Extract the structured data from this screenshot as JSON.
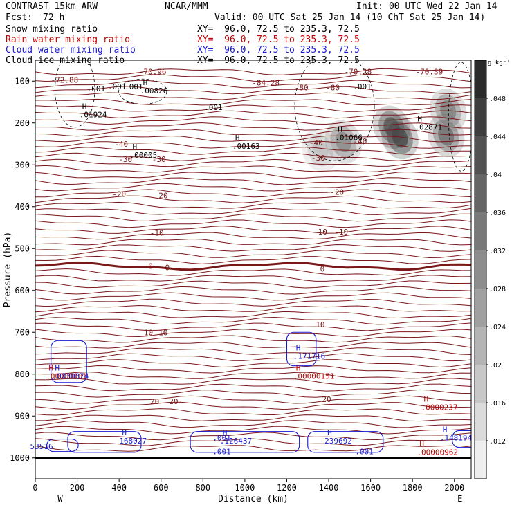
{
  "header": {
    "title": "CONTRAST 15km ARW",
    "org": "NCAR/MMM",
    "init": "Init: 00 UTC Wed 22 Jan 14",
    "fcst_label": "Fcst:",
    "fcst_value": "72 h",
    "valid": "Valid: 00 UTC Sat 25 Jan 14 (10 ChT Sat 25 Jan 14)",
    "fields": [
      {
        "name": "Snow mixing ratio",
        "xy": "XY=  96.0, 72.5 to 235.3, 72.5",
        "color": "#000000"
      },
      {
        "name": "Rain water mixing ratio",
        "xy": "XY=  96.0, 72.5 to 235.3, 72.5",
        "color": "#c00000"
      },
      {
        "name": "Cloud water mixing ratio",
        "xy": "XY=  96.0, 72.5 to 235.3, 72.5",
        "color": "#1a1ad0"
      },
      {
        "name": "Cloud ice mixing ratio",
        "xy": "XY=  96.0, 72.5 to 235.3, 72.5",
        "color": "#000000"
      }
    ]
  },
  "chart_data": {
    "type": "heatmap",
    "xlabel": "Distance (km)",
    "ylabel": "Pressure (hPa)",
    "xlim": [
      0,
      2080
    ],
    "ylim": [
      1050,
      50
    ],
    "x_ticks": [
      0,
      200,
      400,
      600,
      800,
      1000,
      1200,
      1400,
      1600,
      1800,
      2000
    ],
    "y_ticks": [
      100,
      200,
      300,
      400,
      500,
      600,
      700,
      800,
      900,
      1000
    ],
    "x_end_labels": {
      "left": "W",
      "right": "E"
    },
    "colorbar": {
      "unit": "g kg⁻¹",
      "ticks": [
        ".012",
        ".016",
        ".02",
        ".024",
        ".028",
        ".032",
        ".036",
        ".04",
        ".044",
        ".048"
      ],
      "tick_values": [
        0.012,
        0.016,
        0.02,
        0.024,
        0.028,
        0.032,
        0.036,
        0.04,
        0.044,
        0.048
      ],
      "range": [
        0.008,
        0.052
      ]
    },
    "snow_blobs": [
      {
        "x": 1360,
        "p": 265,
        "value": 0.018
      },
      {
        "x": 1470,
        "p": 245,
        "value": 0.03
      },
      {
        "x": 1700,
        "p": 210,
        "value": 0.04
      },
      {
        "x": 1740,
        "p": 235,
        "value": 0.044
      },
      {
        "x": 1970,
        "p": 170,
        "value": 0.032
      },
      {
        "x": 1960,
        "p": 230,
        "value": 0.036
      }
    ],
    "temperature_labels": [
      {
        "text": "-72.88",
        "x": 140,
        "p": 97
      },
      {
        "text": "-70.96",
        "x": 560,
        "p": 77
      },
      {
        "text": "-84.28",
        "x": 1100,
        "p": 104
      },
      {
        "text": "-70.28",
        "x": 1540,
        "p": 77
      },
      {
        "text": "-70.39",
        "x": 1880,
        "p": 77
      },
      {
        "text": "-80",
        "x": 1270,
        "p": 115
      },
      {
        "text": "-80",
        "x": 1420,
        "p": 115
      },
      {
        "text": "-40",
        "x": 410,
        "p": 250
      },
      {
        "text": "-40",
        "x": 1340,
        "p": 247
      },
      {
        "text": "-40",
        "x": 1550,
        "p": 243
      },
      {
        "text": "-30",
        "x": 430,
        "p": 286
      },
      {
        "text": "-30",
        "x": 590,
        "p": 286
      },
      {
        "text": "-30",
        "x": 1350,
        "p": 283
      },
      {
        "text": "-20",
        "x": 400,
        "p": 370
      },
      {
        "text": "-20",
        "x": 600,
        "p": 373
      },
      {
        "text": "-20",
        "x": 1440,
        "p": 365
      },
      {
        "text": "-10",
        "x": 580,
        "p": 462
      },
      {
        "text": "-10",
        "x": 1360,
        "p": 460
      },
      {
        "text": "-10",
        "x": 1460,
        "p": 460
      },
      {
        "text": "0",
        "x": 550,
        "p": 542
      },
      {
        "text": "0",
        "x": 630,
        "p": 545
      },
      {
        "text": "0",
        "x": 1370,
        "p": 548
      },
      {
        "text": "10",
        "x": 540,
        "p": 700
      },
      {
        "text": "10",
        "x": 610,
        "p": 700
      },
      {
        "text": "10",
        "x": 1360,
        "p": 681
      },
      {
        "text": "20",
        "x": 570,
        "p": 865
      },
      {
        "text": "20",
        "x": 660,
        "p": 865
      },
      {
        "text": "20",
        "x": 1390,
        "p": 860
      }
    ],
    "ice_labels": [
      {
        "text": ".001",
        "x": 290,
        "p": 118
      },
      {
        "text": ".001",
        "x": 470,
        "p": 113
      },
      {
        "text": ".001",
        "x": 390,
        "p": 113
      },
      {
        "text": ".001",
        "x": 850,
        "p": 162
      },
      {
        "text": ".001",
        "x": 1560,
        "p": 113
      }
    ],
    "max_labels": [
      {
        "H": "H",
        "text": ".01924",
        "x": 270,
        "p": 183,
        "color": "#000000"
      },
      {
        "H": "H",
        "text": ".00826",
        "x": 560,
        "p": 126,
        "color": "#000000"
      },
      {
        "H": "H",
        "text": ".00005",
        "x": 510,
        "p": 280,
        "color": "#000000"
      },
      {
        "H": "H",
        "text": ".00163",
        "x": 1000,
        "p": 258,
        "color": "#000000"
      },
      {
        "H": "H",
        "text": ".01066",
        "x": 1490,
        "p": 238,
        "color": "#000000"
      },
      {
        "H": "H",
        "text": ".02871",
        "x": 1870,
        "p": 213,
        "color": "#000000"
      },
      {
        "H": "H",
        "text": ".171716",
        "x": 1290,
        "p": 760,
        "color": "#1a1ad0"
      },
      {
        "H": "H",
        "text": ".00000151",
        "x": 1290,
        "p": 808,
        "color": "#c00000"
      },
      {
        "H": "H",
        "text": ".0000237",
        "x": 1900,
        "p": 882,
        "color": "#c00000"
      },
      {
        "H": "H",
        "text": ".148194",
        "x": 1990,
        "p": 955,
        "color": "#1a1ad0"
      },
      {
        "H": "H",
        "text": ".00000962",
        "x": 1880,
        "p": 990,
        "color": "#c00000"
      },
      {
        "H": "H",
        "text": "168027",
        "x": 460,
        "p": 962,
        "color": "#1a1ad0"
      },
      {
        "H": "H",
        "text": ".126437",
        "x": 940,
        "p": 962,
        "color": "#1a1ad0"
      },
      {
        "H": "H",
        "text": "239692",
        "x": 1440,
        "p": 962,
        "color": "#1a1ad0"
      },
      {
        "H": "H",
        "text": ".00000001",
        "x": 110,
        "p": 808,
        "color": "#c00000"
      },
      {
        "H": "H",
        "text": ".0030874",
        "x": 140,
        "p": 808,
        "color": "#1a1ad0"
      }
    ],
    "cloud_water_labels": [
      {
        "text": ".001",
        "x": 890,
        "p": 952
      },
      {
        "text": ".001",
        "x": 890,
        "p": 985
      },
      {
        "text": ".001",
        "x": 1570,
        "p": 985
      },
      {
        "text": "53516",
        "x": 30,
        "p": 972
      }
    ]
  }
}
